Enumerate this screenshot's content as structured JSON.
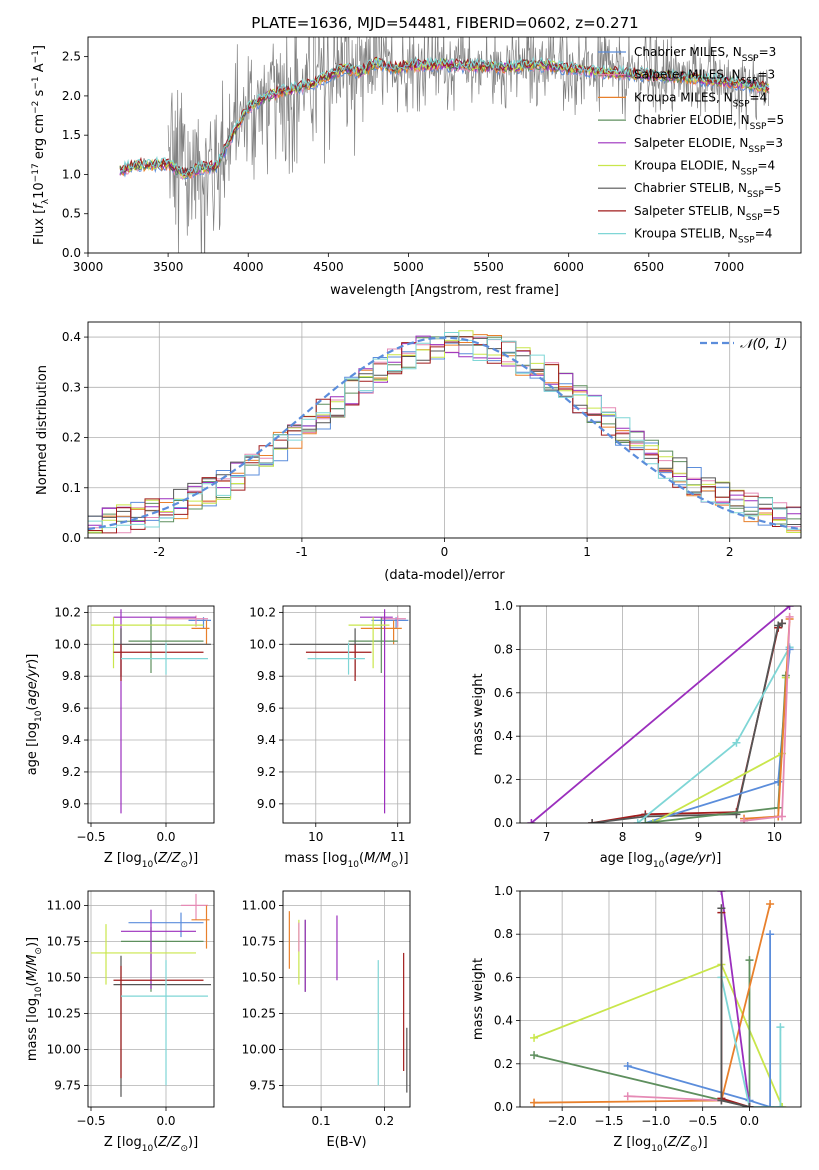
{
  "figure_title": "PLATE=1636, MJD=54481, FIBERID=0602, z=0.271",
  "colors": {
    "Chabrier MILES": "#5b8ddb",
    "Salpeter MILES": "#e58ab5",
    "Kroupa MILES": "#e8802c",
    "Chabrier ELODIE": "#5e8f5e",
    "Salpeter ELODIE": "#9b2fbd",
    "Kroupa ELODIE": "#c9e64b",
    "Chabrier STELIB": "#555555",
    "Salpeter STELIB": "#a11c1c",
    "Kroupa STELIB": "#7fd6d6",
    "data": "#808080",
    "normal": "#5b8ddb",
    "grid": "#b0b0b0"
  },
  "chart_data": [
    {
      "id": "spectrum",
      "type": "line",
      "title": "PLATE=1636, MJD=54481, FIBERID=0602, z=0.271",
      "xlabel": "wavelength [Angstrom, rest frame]",
      "ylabel": "Flux [f_λ 10^-17 erg cm^-2 s^-1 A^-1]",
      "xlim": [
        3000,
        7450
      ],
      "ylim": [
        0,
        2.75
      ],
      "xticks": [
        3000,
        3500,
        4000,
        4500,
        5000,
        5500,
        6000,
        6500,
        7000
      ],
      "yticks": [
        0.0,
        0.5,
        1.0,
        1.5,
        2.0,
        2.5
      ],
      "grid": false,
      "legend_position": "top-right",
      "legend": [
        {
          "name": "Chabrier MILES",
          "nssp": "3"
        },
        {
          "name": "Salpeter MILES",
          "nssp": "3"
        },
        {
          "name": "Kroupa MILES",
          "nssp": "4"
        },
        {
          "name": "Chabrier ELODIE",
          "nssp": "5"
        },
        {
          "name": "Salpeter ELODIE",
          "nssp": "3"
        },
        {
          "name": "Kroupa ELODIE",
          "nssp": "4"
        },
        {
          "name": "Chabrier STELIB",
          "nssp": "5"
        },
        {
          "name": "Salpeter STELIB",
          "nssp": "5"
        },
        {
          "name": "Kroupa STELIB",
          "nssp": "4"
        }
      ],
      "model_continuum": {
        "x": [
          3200,
          3300,
          3400,
          3500,
          3600,
          3700,
          3800,
          3900,
          4000,
          4100,
          4200,
          4300,
          4400,
          4500,
          4600,
          4700,
          4800,
          4900,
          5000,
          5200,
          5400,
          5600,
          5800,
          6000,
          6200,
          6400,
          6600,
          6800,
          7000,
          7250
        ],
        "y": [
          1.05,
          1.12,
          1.12,
          1.13,
          1.0,
          1.08,
          1.1,
          1.5,
          1.85,
          1.98,
          2.05,
          2.1,
          2.15,
          2.25,
          2.35,
          2.3,
          2.42,
          2.35,
          2.38,
          2.4,
          2.38,
          2.36,
          2.4,
          2.35,
          2.3,
          2.28,
          2.25,
          2.22,
          2.18,
          2.1
        ]
      },
      "data_range": [
        3500,
        7250
      ]
    },
    {
      "id": "residual-hist",
      "type": "bar",
      "xlabel": "(data-model)/error",
      "ylabel": "Normed distribution",
      "xlim": [
        -2.5,
        2.5
      ],
      "ylim": [
        0,
        0.43
      ],
      "xticks": [
        -2,
        -1,
        0,
        1,
        2
      ],
      "yticks": [
        0.0,
        0.1,
        0.2,
        0.3,
        0.4
      ],
      "grid": true,
      "legend_position": "top-right",
      "legend": [
        {
          "name": "𝒩(0, 1)"
        }
      ],
      "bin_width": 0.1,
      "bin_start": -2.5,
      "normal_curve": {
        "mean": 0,
        "sigma": 1
      }
    },
    {
      "id": "age-vs-Z",
      "type": "scatter",
      "xlabel": "Z [log10(Z/Z⊙)]",
      "ylabel": "age [log10(age/yr)]",
      "xlim": [
        -0.52,
        0.32
      ],
      "ylim": [
        8.88,
        10.24
      ],
      "xticks": [
        -0.5,
        0.0
      ],
      "xticklabels": [
        "−0.5",
        "0.0"
      ],
      "yticks": [
        9.0,
        9.2,
        9.4,
        9.6,
        9.8,
        10.0,
        10.2
      ],
      "grid": true,
      "points": [
        {
          "model": "Chabrier MILES",
          "x": 0.25,
          "xerr": [
            0.1,
            0.05
          ],
          "y": 10.15,
          "yerr": [
            0.05,
            0.02
          ]
        },
        {
          "model": "Salpeter MILES",
          "x": 0.2,
          "xerr": [
            0.2,
            0.08
          ],
          "y": 10.16,
          "yerr": [
            0.05,
            0.02
          ]
        },
        {
          "model": "Kroupa MILES",
          "x": 0.27,
          "xerr": [
            0.1,
            0.02
          ],
          "y": 10.1,
          "yerr": [
            0.1,
            0.05
          ]
        },
        {
          "model": "Chabrier ELODIE",
          "x": -0.1,
          "xerr": [
            0.15,
            0.35
          ],
          "y": 10.02,
          "yerr": [
            0.2,
            0.15
          ]
        },
        {
          "model": "Salpeter ELODIE",
          "x": -0.3,
          "xerr": [
            0.05,
            0.5
          ],
          "y": 10.17,
          "yerr": [
            1.23,
            0.05
          ]
        },
        {
          "model": "Kroupa ELODIE",
          "x": -0.35,
          "xerr": [
            0.15,
            0.6
          ],
          "y": 10.12,
          "yerr": [
            0.27,
            0.05
          ]
        },
        {
          "model": "Chabrier STELIB",
          "x": -0.3,
          "xerr": [
            0.05,
            0.6
          ],
          "y": 10.0,
          "yerr": [
            0.2,
            0.1
          ]
        },
        {
          "model": "Salpeter STELIB",
          "x": -0.3,
          "xerr": [
            0.05,
            0.55
          ],
          "y": 9.95,
          "yerr": [
            0.18,
            0.05
          ]
        },
        {
          "model": "Kroupa STELIB",
          "x": 0.0,
          "xerr": [
            0.3,
            0.28
          ],
          "y": 9.91,
          "yerr": [
            0.1,
            0.1
          ]
        }
      ]
    },
    {
      "id": "age-vs-mass",
      "type": "scatter",
      "xlabel": "mass [log10(M/M⊙)]",
      "ylabel": "",
      "xlim": [
        9.6,
        11.15
      ],
      "ylim": [
        8.88,
        10.24
      ],
      "xticks": [
        10,
        11
      ],
      "yticks": [
        9.0,
        9.2,
        9.4,
        9.6,
        9.8,
        10.0,
        10.2
      ],
      "grid": true,
      "points": [
        {
          "model": "Chabrier MILES",
          "x": 10.98,
          "xerr": [
            0.3,
            0.15
          ],
          "y": 10.15,
          "yerr": [
            0.05,
            0.02
          ]
        },
        {
          "model": "Salpeter MILES",
          "x": 11.0,
          "xerr": [
            0.2,
            0.1
          ],
          "y": 10.16,
          "yerr": [
            0.05,
            0.02
          ]
        },
        {
          "model": "Kroupa MILES",
          "x": 10.95,
          "xerr": [
            0.4,
            0.1
          ],
          "y": 10.1,
          "yerr": [
            0.1,
            0.05
          ]
        },
        {
          "model": "Chabrier ELODIE",
          "x": 10.8,
          "xerr": [
            0.4,
            0.2
          ],
          "y": 10.02,
          "yerr": [
            0.2,
            0.15
          ]
        },
        {
          "model": "Salpeter ELODIE",
          "x": 10.84,
          "xerr": [
            0.3,
            0.1
          ],
          "y": 10.17,
          "yerr": [
            1.23,
            0.05
          ]
        },
        {
          "model": "Kroupa ELODIE",
          "x": 10.7,
          "xerr": [
            0.3,
            0.2
          ],
          "y": 10.12,
          "yerr": [
            0.27,
            0.05
          ]
        },
        {
          "model": "Chabrier STELIB",
          "x": 10.48,
          "xerr": [
            0.8,
            0.2
          ],
          "y": 10.0,
          "yerr": [
            0.2,
            0.1
          ]
        },
        {
          "model": "Salpeter STELIB",
          "x": 10.48,
          "xerr": [
            0.6,
            0.2
          ],
          "y": 9.95,
          "yerr": [
            0.18,
            0.05
          ]
        },
        {
          "model": "Kroupa STELIB",
          "x": 10.4,
          "xerr": [
            0.5,
            0.2
          ],
          "y": 9.91,
          "yerr": [
            0.1,
            0.1
          ]
        }
      ]
    },
    {
      "id": "weight-vs-age",
      "type": "line",
      "xlabel": "age [log10(age/yr)]",
      "ylabel": "mass weight",
      "xlim": [
        6.65,
        10.35
      ],
      "ylim": [
        0,
        1.0
      ],
      "xticks": [
        7,
        8,
        9,
        10
      ],
      "yticks": [
        0.0,
        0.2,
        0.4,
        0.6,
        0.8,
        1.0
      ],
      "grid": true,
      "series": [
        {
          "model": "Salpeter ELODIE",
          "x": [
            6.8,
            10.2
          ],
          "y": [
            0.0,
            1.0
          ]
        },
        {
          "model": "Salpeter STELIB",
          "x": [
            7.6,
            8.3,
            9.5,
            10.05,
            10.1
          ],
          "y": [
            0.0,
            0.04,
            0.05,
            0.9,
            0.92
          ]
        },
        {
          "model": "Chabrier STELIB",
          "x": [
            7.6,
            8.3,
            9.5,
            10.05,
            10.1
          ],
          "y": [
            0.0,
            0.03,
            0.04,
            0.91,
            0.92
          ]
        },
        {
          "model": "Kroupa STELIB",
          "x": [
            8.2,
            9.5,
            10.2
          ],
          "y": [
            0.0,
            0.37,
            0.81
          ]
        },
        {
          "model": "Chabrier MILES",
          "x": [
            8.3,
            10.05,
            10.2
          ],
          "y": [
            0.0,
            0.19,
            0.8
          ]
        },
        {
          "model": "Kroupa ELODIE",
          "x": [
            8.4,
            10.1,
            10.15
          ],
          "y": [
            0.0,
            0.32,
            0.67
          ]
        },
        {
          "model": "Chabrier ELODIE",
          "x": [
            8.3,
            10.05,
            10.15
          ],
          "y": [
            0.0,
            0.07,
            0.68
          ]
        },
        {
          "model": "Kroupa MILES",
          "x": [
            9.6,
            10.05,
            10.2
          ],
          "y": [
            0.02,
            0.03,
            0.94
          ]
        },
        {
          "model": "Salpeter MILES",
          "x": [
            9.6,
            10.1,
            10.2
          ],
          "y": [
            0.01,
            0.03,
            0.95
          ]
        }
      ]
    },
    {
      "id": "mass-vs-Z",
      "type": "scatter",
      "xlabel": "Z [log10(Z/Z⊙)]",
      "ylabel": "mass [log10(M/M⊙)]",
      "xlim": [
        -0.52,
        0.32
      ],
      "ylim": [
        9.6,
        11.1
      ],
      "xticks": [
        -0.5,
        0.0
      ],
      "xticklabels": [
        "−0.5",
        "0.0"
      ],
      "yticks": [
        9.75,
        10.0,
        10.25,
        10.5,
        10.75,
        11.0
      ],
      "grid": true,
      "points": [
        {
          "model": "Chabrier MILES",
          "x": 0.1,
          "xerr": [
            0.35,
            0.15
          ],
          "y": 10.88,
          "yerr": [
            0.1,
            0.07
          ]
        },
        {
          "model": "Salpeter MILES",
          "x": 0.2,
          "xerr": [
            0.1,
            0.08
          ],
          "y": 11.0,
          "yerr": [
            0.1,
            0.08
          ]
        },
        {
          "model": "Kroupa MILES",
          "x": 0.27,
          "xerr": [
            0.1,
            0.02
          ],
          "y": 10.9,
          "yerr": [
            0.2,
            0.1
          ]
        },
        {
          "model": "Chabrier ELODIE",
          "x": -0.1,
          "xerr": [
            0.2,
            0.35
          ],
          "y": 10.75,
          "yerr": [
            0.35,
            0.1
          ]
        },
        {
          "model": "Salpeter ELODIE",
          "x": -0.1,
          "xerr": [
            0.2,
            0.3
          ],
          "y": 10.82,
          "yerr": [
            0.4,
            0.15
          ]
        },
        {
          "model": "Kroupa ELODIE",
          "x": -0.4,
          "xerr": [
            0.1,
            0.6
          ],
          "y": 10.67,
          "yerr": [
            0.22,
            0.2
          ]
        },
        {
          "model": "Chabrier STELIB",
          "x": -0.3,
          "xerr": [
            0.05,
            0.6
          ],
          "y": 10.45,
          "yerr": [
            0.78,
            0.2
          ]
        },
        {
          "model": "Salpeter STELIB",
          "x": -0.3,
          "xerr": [
            0.05,
            0.55
          ],
          "y": 10.48,
          "yerr": [
            0.68,
            0.1
          ]
        },
        {
          "model": "Kroupa STELIB",
          "x": 0.0,
          "xerr": [
            0.3,
            0.28
          ],
          "y": 10.37,
          "yerr": [
            0.62,
            0.25
          ]
        }
      ]
    },
    {
      "id": "mass-vs-ebv",
      "type": "scatter",
      "xlabel": "E(B-V)",
      "ylabel": "",
      "xlim": [
        0.04,
        0.24
      ],
      "ylim": [
        9.6,
        11.1
      ],
      "xticks": [
        0.1,
        0.2
      ],
      "yticks": [
        9.75,
        10.0,
        10.25,
        10.5,
        10.75,
        11.0
      ],
      "grid": true,
      "points": [
        {
          "model": "Kroupa MILES",
          "x": 0.05,
          "y": 10.78,
          "yerr": [
            0.22,
            0.18
          ]
        },
        {
          "model": "Kroupa ELODIE",
          "x": 0.065,
          "y": 10.7,
          "yerr": [
            0.25,
            0.2
          ]
        },
        {
          "model": "Salpeter MILES",
          "x": 0.065,
          "y": 10.78,
          "yerr": [
            0.1,
            0.1
          ]
        },
        {
          "model": "Chabrier ELODIE",
          "x": 0.075,
          "y": 10.65,
          "yerr": [
            0.25,
            0.25
          ]
        },
        {
          "model": "Salpeter ELODIE",
          "x": 0.075,
          "y": 10.8,
          "yerr": [
            0.4,
            0.1
          ]
        },
        {
          "model": "Salpeter ELODIE",
          "x": 0.125,
          "y": 10.78,
          "yerr": [
            0.3,
            0.15
          ]
        },
        {
          "model": "Kroupa STELIB",
          "x": 0.19,
          "y": 10.2,
          "yerr": [
            0.45,
            0.42
          ]
        },
        {
          "model": "Salpeter STELIB",
          "x": 0.23,
          "y": 10.25,
          "yerr": [
            0.4,
            0.42
          ]
        },
        {
          "model": "Chabrier STELIB",
          "x": 0.235,
          "y": 9.9,
          "yerr": [
            0.2,
            0.25
          ]
        }
      ]
    },
    {
      "id": "weight-vs-Z",
      "type": "line",
      "xlabel": "Z [log10(Z/Z⊙)]",
      "ylabel": "mass weight",
      "xlim": [
        -2.45,
        0.55
      ],
      "ylim": [
        0,
        1.0
      ],
      "xticks": [
        -2.0,
        -1.5,
        -1.0,
        -0.5,
        0.0
      ],
      "xticklabels": [
        "−2.0",
        "−1.5",
        "−1.0",
        "−0.5",
        "0.0"
      ],
      "yticks": [
        0.0,
        0.2,
        0.4,
        0.6,
        0.8,
        1.0
      ],
      "grid": true,
      "series": [
        {
          "model": "Kroupa ELODIE",
          "x": [
            -2.3,
            -0.3,
            0.35
          ],
          "y": [
            0.32,
            0.66,
            0.0
          ]
        },
        {
          "model": "Chabrier ELODIE",
          "x": [
            -2.3,
            0.0,
            0.0
          ],
          "y": [
            0.24,
            0.0,
            0.68
          ]
        },
        {
          "model": "Chabrier MILES",
          "x": [
            -1.3,
            0.0,
            0.22,
            0.22
          ],
          "y": [
            0.19,
            0.03,
            0.0,
            0.8
          ]
        },
        {
          "model": "Kroupa MILES",
          "x": [
            -2.3,
            -0.3,
            0.22
          ],
          "y": [
            0.02,
            0.03,
            0.94
          ]
        },
        {
          "model": "Salpeter MILES",
          "x": [
            -1.3,
            -0.3
          ],
          "y": [
            0.05,
            0.03
          ]
        },
        {
          "model": "Salpeter ELODIE",
          "x": [
            -0.3,
            0.0,
            0.0
          ],
          "y": [
            1.0,
            0.0,
            0.0
          ]
        },
        {
          "model": "Kroupa STELIB",
          "x": [
            -0.3,
            0.0,
            0.33,
            0.33
          ],
          "y": [
            0.6,
            0.0,
            0.0,
            0.37
          ]
        },
        {
          "model": "Salpeter STELIB",
          "x": [
            -0.3,
            -0.3,
            0.0
          ],
          "y": [
            0.9,
            0.04,
            0.0
          ]
        },
        {
          "model": "Chabrier STELIB",
          "x": [
            -0.3,
            -0.3,
            0.0
          ],
          "y": [
            0.92,
            0.03,
            0.0
          ]
        }
      ]
    }
  ]
}
